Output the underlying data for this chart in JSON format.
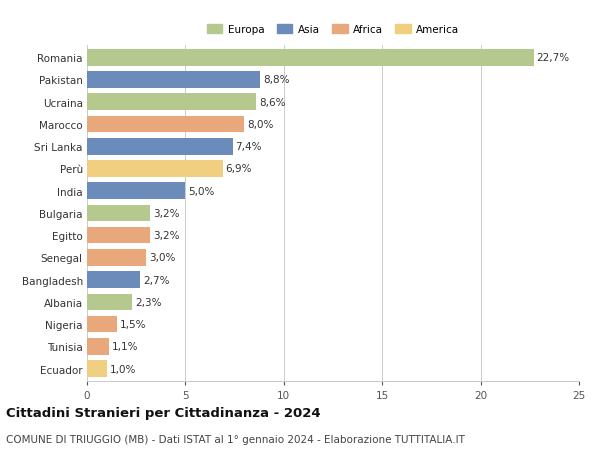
{
  "countries": [
    "Romania",
    "Pakistan",
    "Ucraina",
    "Marocco",
    "Sri Lanka",
    "Perù",
    "India",
    "Bulgaria",
    "Egitto",
    "Senegal",
    "Bangladesh",
    "Albania",
    "Nigeria",
    "Tunisia",
    "Ecuador"
  ],
  "values": [
    22.7,
    8.8,
    8.6,
    8.0,
    7.4,
    6.9,
    5.0,
    3.2,
    3.2,
    3.0,
    2.7,
    2.3,
    1.5,
    1.1,
    1.0
  ],
  "continents": [
    "Europa",
    "Asia",
    "Europa",
    "Africa",
    "Asia",
    "America",
    "Asia",
    "Europa",
    "Africa",
    "Africa",
    "Asia",
    "Europa",
    "Africa",
    "Africa",
    "America"
  ],
  "colors": {
    "Europa": "#b5c98e",
    "Asia": "#6b8cba",
    "Africa": "#e8a87c",
    "America": "#f0d080"
  },
  "xlim": [
    0,
    25
  ],
  "xticks": [
    0,
    5,
    10,
    15,
    20,
    25
  ],
  "title": "Cittadini Stranieri per Cittadinanza - 2024",
  "subtitle": "COMUNE DI TRIUGGIO (MB) - Dati ISTAT al 1° gennaio 2024 - Elaborazione TUTTITALIA.IT",
  "background_color": "#ffffff",
  "grid_color": "#cccccc",
  "bar_height": 0.75,
  "label_fontsize": 7.5,
  "tick_fontsize": 7.5,
  "title_fontsize": 9.5,
  "subtitle_fontsize": 7.5,
  "legend_entries": [
    "Europa",
    "Asia",
    "Africa",
    "America"
  ]
}
